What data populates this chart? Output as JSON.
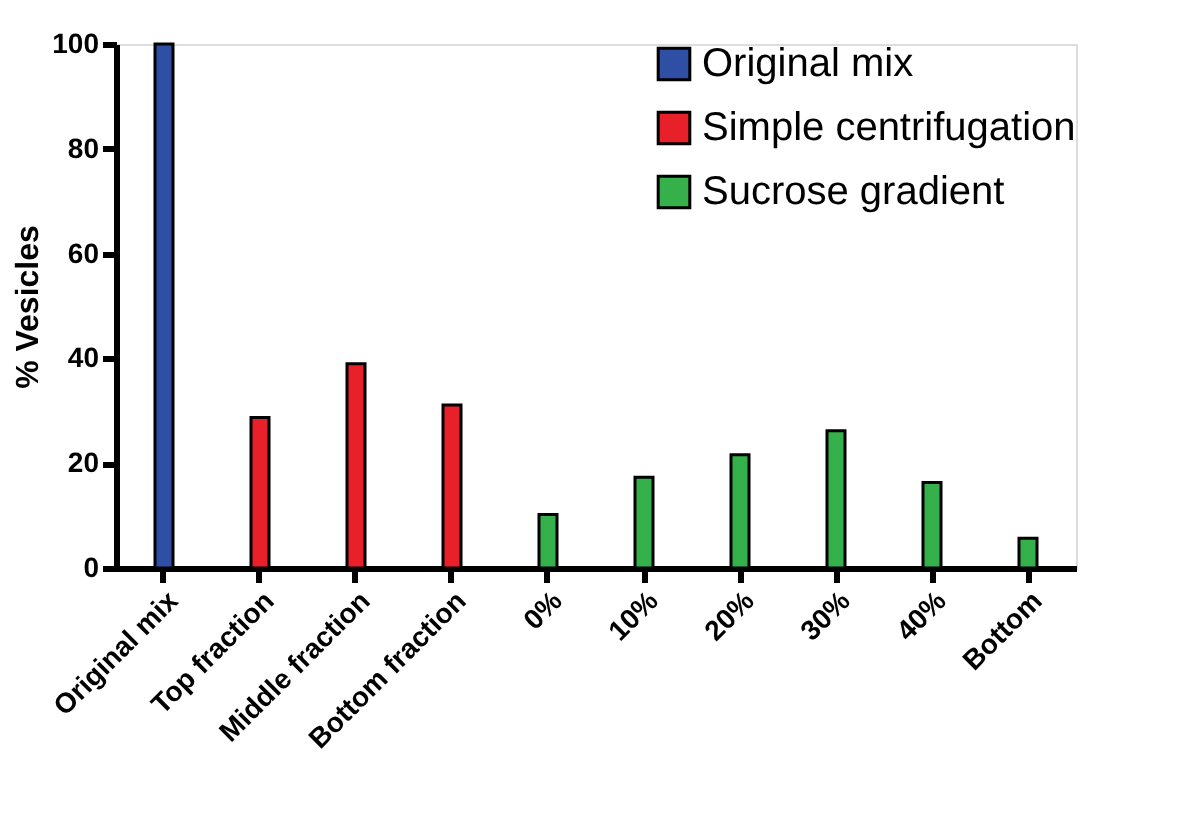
{
  "chart_data": {
    "type": "bar",
    "ylabel": "% Vesicles",
    "categories": [
      "Original mix",
      "Top fraction",
      "Middle fraction",
      "Bottom fraction",
      "0%",
      "10%",
      "20%",
      "30%",
      "40%",
      "Bottom"
    ],
    "series": [
      {
        "name": "Original mix",
        "color": "#2e4fa3",
        "values": [
          100,
          null,
          null,
          null,
          null,
          null,
          null,
          null,
          null,
          null
        ]
      },
      {
        "name": "Simple centrifugation",
        "color": "#e8202a",
        "values": [
          null,
          28.7,
          39,
          31.1,
          null,
          null,
          null,
          null,
          null,
          null
        ]
      },
      {
        "name": "Sucrose gradient",
        "color": "#35b04a",
        "values": [
          null,
          null,
          null,
          null,
          10.2,
          17.3,
          21.6,
          26.2,
          16.3,
          5.7
        ]
      }
    ],
    "ylim": [
      0,
      100
    ],
    "yticks": [
      0,
      20,
      40,
      60,
      80,
      100
    ],
    "grid": false,
    "legend": "top right"
  }
}
